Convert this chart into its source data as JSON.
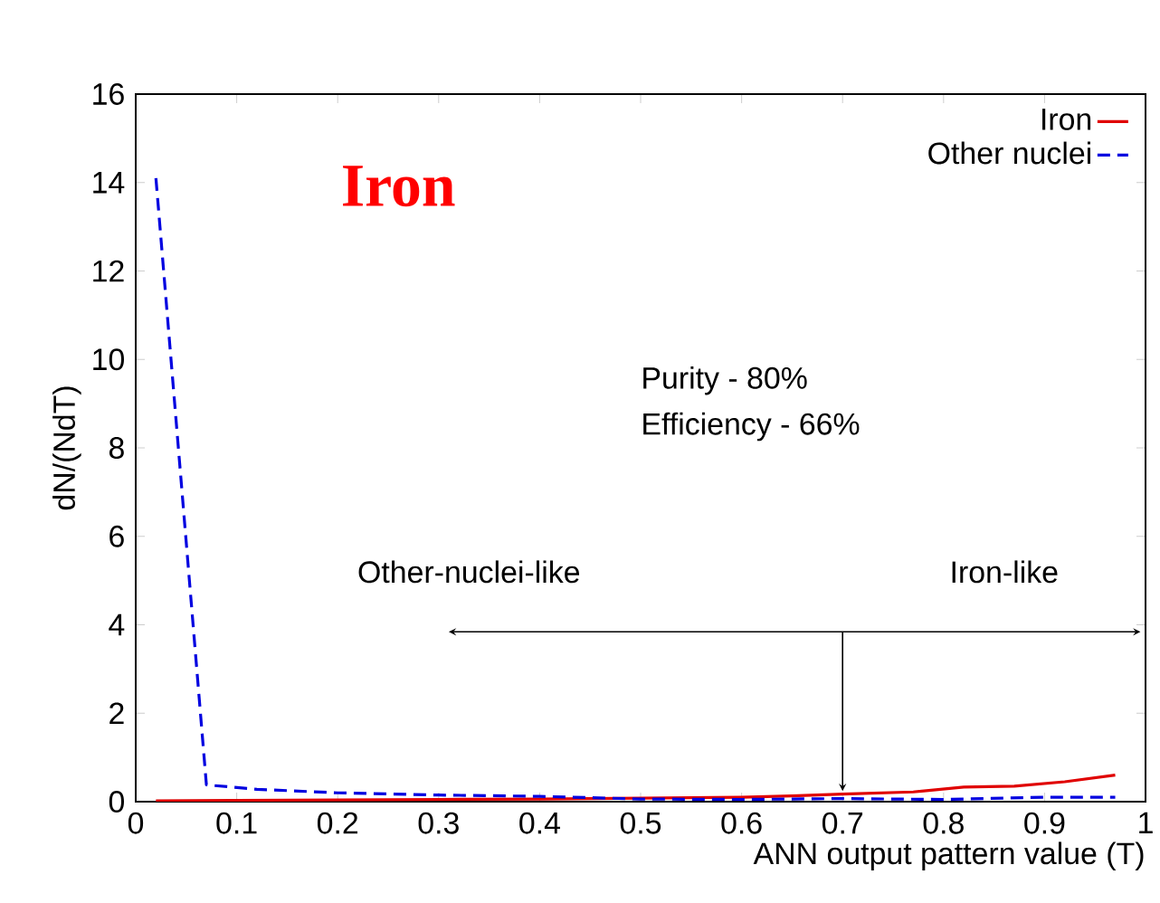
{
  "chart_data": {
    "type": "line",
    "title": "Iron",
    "xlabel": "ANN output pattern value (T)",
    "ylabel": "dN/(NdT)",
    "annotations": [
      "Purity - 80%",
      "Efficiency - 66%",
      "Other-nuclei-like",
      "Iron-like"
    ],
    "xlim": [
      0,
      1
    ],
    "xticks": [
      0,
      0.1,
      0.2,
      0.3,
      0.4,
      0.5,
      0.6,
      0.7,
      0.8,
      0.9,
      1
    ],
    "ylim": [
      0,
      16
    ],
    "yticks": [
      0,
      2,
      4,
      6,
      8,
      10,
      12,
      14,
      16
    ],
    "series": [
      {
        "name": "Iron",
        "color": "#e00000",
        "line_style": "solid",
        "x": [
          0.02,
          0.1,
          0.2,
          0.3,
          0.4,
          0.5,
          0.6,
          0.65,
          0.7,
          0.77,
          0.82,
          0.87,
          0.92,
          0.97
        ],
        "values": [
          0.02,
          0.03,
          0.04,
          0.05,
          0.06,
          0.08,
          0.1,
          0.13,
          0.17,
          0.22,
          0.33,
          0.35,
          0.45,
          0.6
        ]
      },
      {
        "name": "Other nuclei",
        "color": "#0000e0",
        "line_style": "dashed",
        "x": [
          0.02,
          0.07,
          0.12,
          0.2,
          0.3,
          0.4,
          0.5,
          0.6,
          0.7,
          0.8,
          0.9,
          0.97
        ],
        "values": [
          14.1,
          0.38,
          0.28,
          0.2,
          0.15,
          0.12,
          0.06,
          0.05,
          0.07,
          0.05,
          0.1,
          0.1
        ]
      }
    ],
    "legend": "top right",
    "grid": false,
    "marker": "none"
  }
}
